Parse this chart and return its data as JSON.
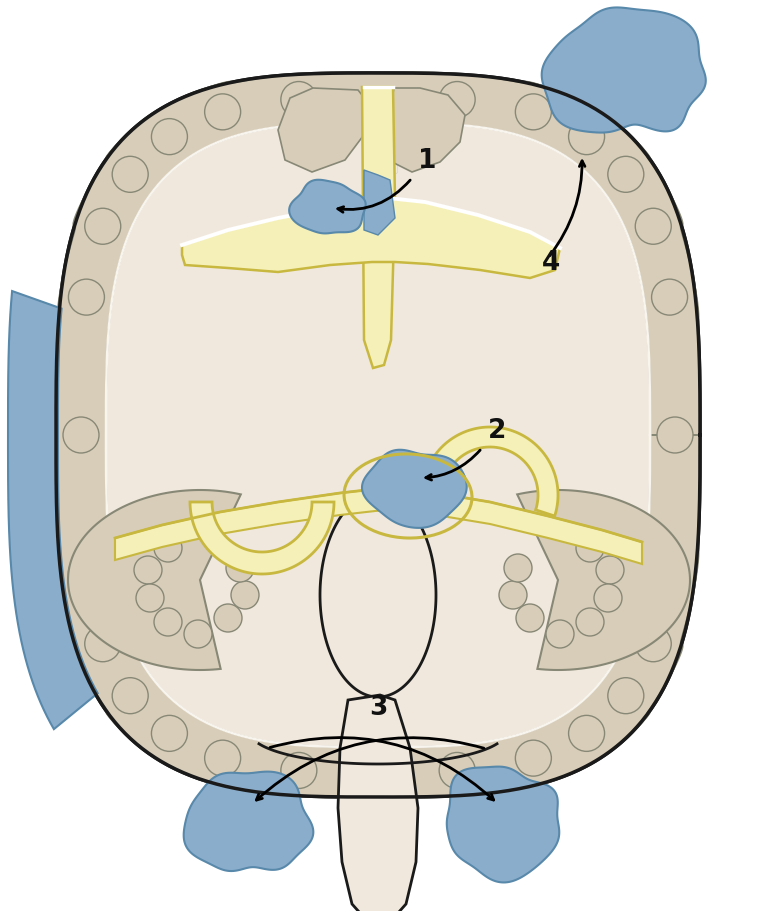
{
  "bg_color": "#ffffff",
  "brain_fill": "#f0e8dc",
  "cortex_fill": "#d8cdb8",
  "yellow_fill": "#f5f0b8",
  "yellow_stroke": "#c8b840",
  "blue_fill": "#8aadcc",
  "blue_stroke": "#5888aa",
  "dark_stroke": "#1a1a1a",
  "medium_stroke": "#888877",
  "label_fontsize": 19,
  "label_color": "#111111"
}
